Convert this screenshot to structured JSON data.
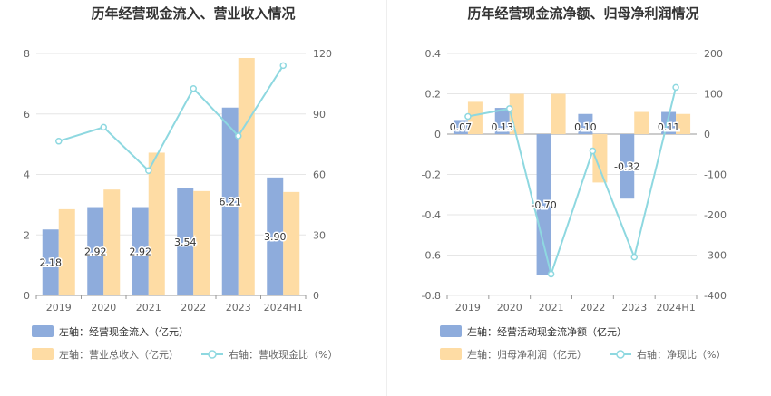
{
  "chart_data": [
    {
      "type": "bar",
      "title": "历年经营现金流入、营业收入情况",
      "categories": [
        "2019",
        "2020",
        "2021",
        "2022",
        "2023",
        "2024H1"
      ],
      "left_axis": {
        "ylim": [
          0,
          8
        ],
        "ticks": [
          0,
          2,
          4,
          6,
          8
        ]
      },
      "right_axis": {
        "ylim": [
          0,
          120
        ],
        "ticks": [
          0,
          30,
          60,
          90,
          120
        ]
      },
      "series": [
        {
          "name": "左轴：经营现金流入（亿元）",
          "kind": "bar",
          "axis": "left",
          "color": "#8eacdc",
          "values": [
            2.18,
            2.92,
            2.92,
            3.54,
            6.21,
            3.9
          ],
          "labels": [
            "2.18",
            "2.92",
            "2.92",
            "3.54",
            "6.21",
            "3.90"
          ]
        },
        {
          "name": "左轴：营业总收入（亿元）",
          "kind": "bar",
          "axis": "left",
          "color": "#fedca4",
          "values": [
            2.85,
            3.5,
            4.72,
            3.45,
            7.85,
            3.42
          ]
        },
        {
          "name": "右轴：营收现金比（%）",
          "kind": "line",
          "axis": "right",
          "color": "#8ed8e0",
          "values": [
            76.5,
            83.4,
            61.9,
            102.6,
            79.1,
            114.0
          ]
        }
      ],
      "legend_placement": "bottom",
      "grid": true
    },
    {
      "type": "bar",
      "title": "历年经营现金流净额、归母净利润情况",
      "categories": [
        "2019",
        "2020",
        "2021",
        "2022",
        "2023",
        "2024H1"
      ],
      "left_axis": {
        "ylim": [
          -0.8,
          0.4
        ],
        "ticks": [
          -0.8,
          -0.6,
          -0.4,
          -0.2,
          0,
          0.2,
          0.4
        ],
        "tick_labels": [
          "-0.8",
          "-0.6",
          "-0.4",
          "-0.2",
          "0",
          "0.2",
          "0.4"
        ]
      },
      "right_axis": {
        "ylim": [
          -400,
          200
        ],
        "ticks": [
          -400,
          -300,
          -200,
          -100,
          0,
          100,
          200
        ]
      },
      "series": [
        {
          "name": "左轴：经营活动现金流净额（亿元）",
          "kind": "bar",
          "axis": "left",
          "color": "#8eacdc",
          "values": [
            0.07,
            0.13,
            -0.7,
            0.1,
            -0.32,
            0.11
          ],
          "labels": [
            "0.07",
            "0.13",
            "-0.70",
            "0.10",
            "-0.32",
            "0.11"
          ]
        },
        {
          "name": "左轴：归母净利润（亿元）",
          "kind": "bar",
          "axis": "left",
          "color": "#fedca4",
          "values": [
            0.16,
            0.2,
            0.2,
            -0.24,
            0.11,
            0.1
          ]
        },
        {
          "name": "右轴：净现比（%）",
          "kind": "line",
          "axis": "right",
          "color": "#8ed8e0",
          "values": [
            43.8,
            63.3,
            -347.1,
            -41.7,
            -304.8,
            116.0
          ]
        }
      ],
      "legend_placement": "bottom",
      "grid": true
    }
  ]
}
